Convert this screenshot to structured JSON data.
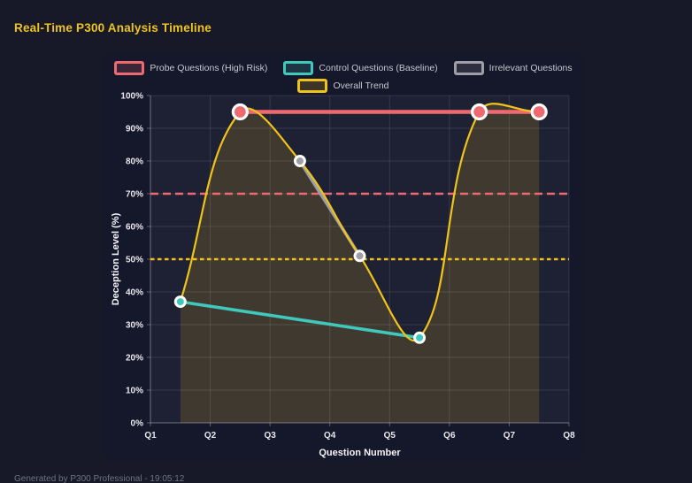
{
  "header": {
    "title": "Real-Time P300 Analysis Timeline"
  },
  "footer": {
    "text": "Generated by P300 Professional - 19:05:12"
  },
  "theme": {
    "page_bg": "#171929",
    "card_bg": "#15172a",
    "plot_bg": "#1e2034",
    "grid_color": "rgba(255,255,255,0.11)",
    "axis_color": "rgba(255,255,255,0.30)",
    "tick_text_color": "#e8e9ee",
    "axis_title_color": "#f2f3f7",
    "legend_text_color": "#c6c8d0",
    "title_color": "#f0c41e",
    "point_border_color": "#ffffff"
  },
  "chart_data": {
    "type": "line",
    "title": "Real-Time P300 Analysis Timeline",
    "xlabel": "Question Number",
    "ylabel": "Deception Level (%)",
    "x_tick_labels": [
      "Q1",
      "Q2",
      "Q3",
      "Q4",
      "Q5",
      "Q6",
      "Q7",
      "Q8"
    ],
    "x_range": [
      1,
      8
    ],
    "y_range": [
      0,
      100
    ],
    "y_tick_step": 10,
    "y_tick_suffix": "%",
    "grid": true,
    "legend_position": "top",
    "series": [
      {
        "name": "Probe Questions (High Risk)",
        "color": "#ee6a70",
        "line_width": 4.5,
        "point_radius": 8,
        "point_border_width": 3.2,
        "smooth": false,
        "fill": false,
        "show_points": true,
        "points": [
          [
            2.5,
            95
          ],
          [
            6.5,
            95
          ],
          [
            7.5,
            95
          ]
        ]
      },
      {
        "name": "Control Questions (Baseline)",
        "color": "#3fc8bb",
        "line_width": 3.6,
        "point_radius": 5.5,
        "point_border_width": 3,
        "smooth": false,
        "fill": false,
        "show_points": true,
        "points": [
          [
            1.5,
            37
          ],
          [
            5.5,
            26
          ]
        ]
      },
      {
        "name": "Irrelevant Questions",
        "color": "#9d9ea6",
        "line_width": 3.6,
        "point_radius": 5.5,
        "point_border_width": 3,
        "smooth": false,
        "fill": false,
        "show_points": true,
        "points": [
          [
            3.5,
            80
          ],
          [
            4.5,
            51
          ]
        ]
      },
      {
        "name": "Overall Trend",
        "color": "#efc319",
        "line_width": 2.2,
        "point_radius": 0,
        "point_border_width": 0,
        "smooth": true,
        "fill": true,
        "fill_opacity": 0.16,
        "show_points": false,
        "points": [
          [
            1.5,
            37
          ],
          [
            2.5,
            95
          ],
          [
            3.5,
            80
          ],
          [
            4.5,
            51
          ],
          [
            5.5,
            26
          ],
          [
            6.5,
            95
          ],
          [
            7.5,
            95
          ]
        ]
      }
    ],
    "thresholds": [
      {
        "value": 70,
        "color": "#ee6a70",
        "style": "dashed"
      },
      {
        "value": 50,
        "color": "#efc319",
        "style": "dotted"
      }
    ]
  }
}
